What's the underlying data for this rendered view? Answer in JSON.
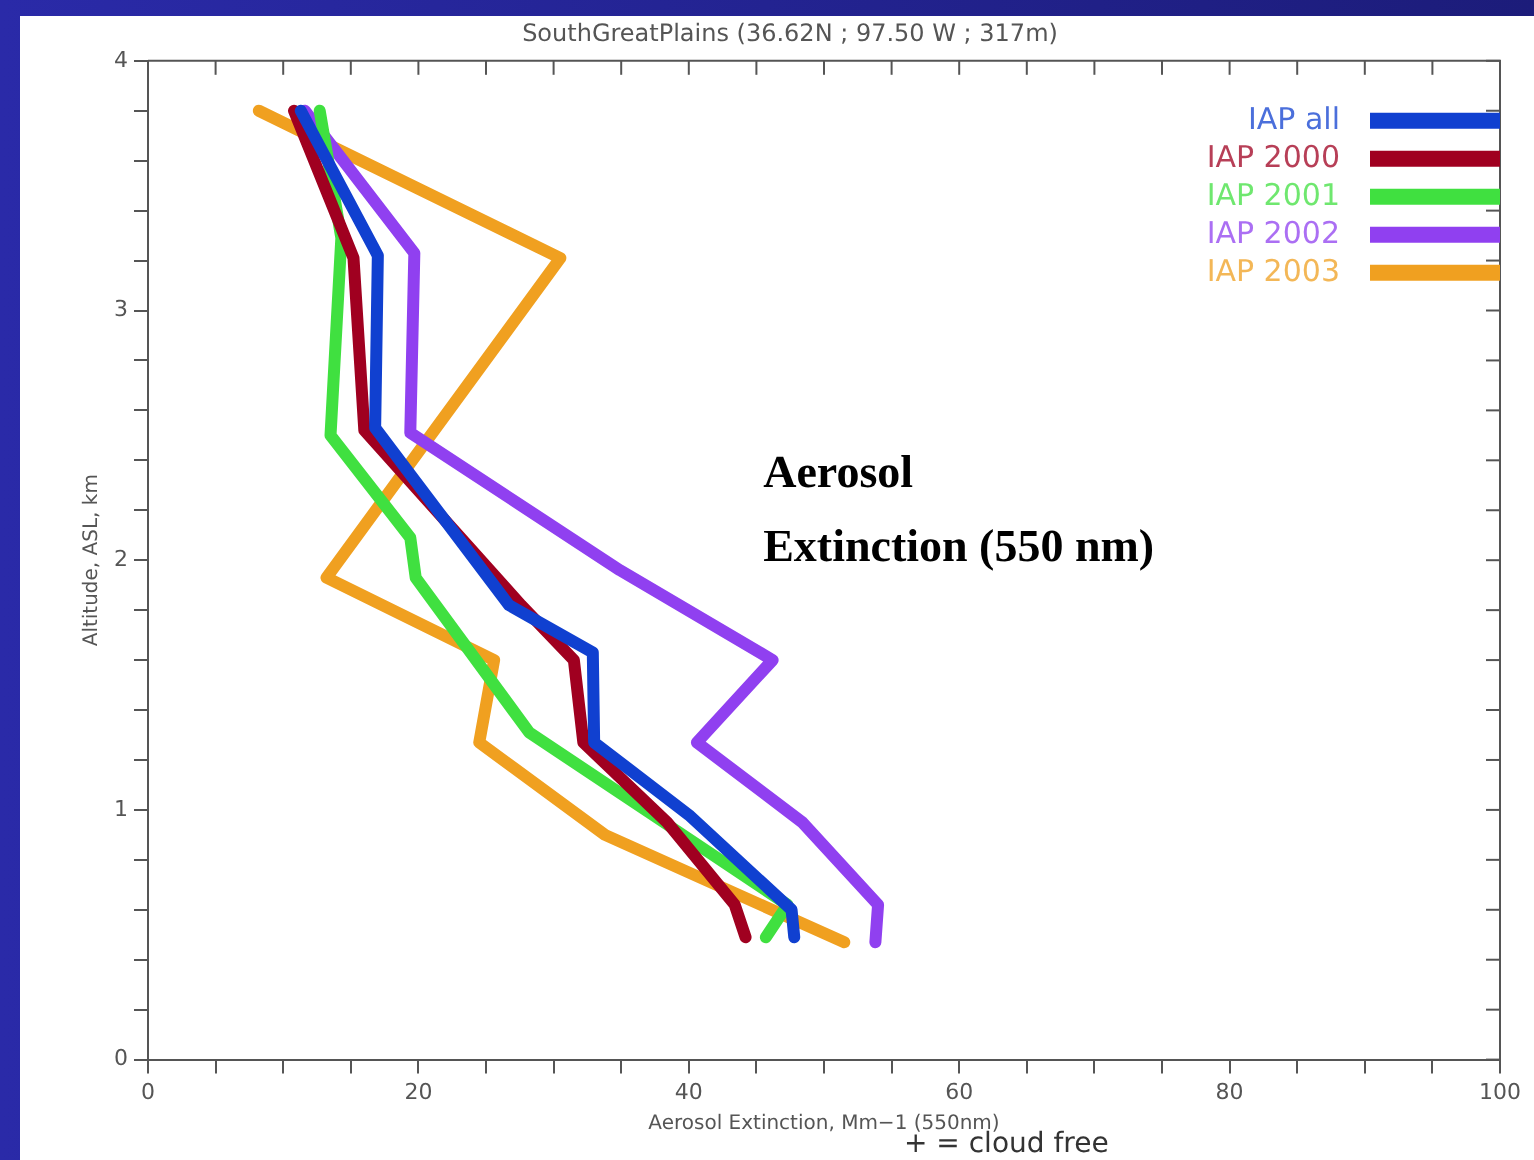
{
  "chart_data": {
    "type": "line",
    "title": "SouthGreatPlains (36.62N ; 97.50 W ; 317m)",
    "xlabel": "Aerosol Extinction, Mm−1 (550nm)",
    "ylabel": "Altitude, ASL, km",
    "annotations": [
      "Aerosol Extinction (550 nm)",
      "+ = cloud free"
    ],
    "xlim": [
      0,
      100
    ],
    "ylim": [
      0,
      4
    ],
    "xticks": [
      0,
      {
        "value": 5,
        "label": null
      },
      {
        "value": 10,
        "label": null
      },
      {
        "value": 15,
        "label": null
      },
      20,
      {
        "value": 25,
        "label": null
      },
      {
        "value": 30,
        "label": null
      },
      {
        "value": 35,
        "label": null
      },
      40,
      {
        "value": 45,
        "label": null
      },
      {
        "value": 50,
        "label": null
      },
      {
        "value": 55,
        "label": null
      },
      60,
      {
        "value": 65,
        "label": null
      },
      {
        "value": 70,
        "label": null
      },
      {
        "value": 75,
        "label": null
      },
      80,
      {
        "value": 85,
        "label": null
      },
      {
        "value": 90,
        "label": null
      },
      {
        "value": 95,
        "label": null
      },
      100
    ],
    "yticks": [
      0,
      {
        "value": 0.2,
        "label": null
      },
      {
        "value": 0.4,
        "label": null
      },
      {
        "value": 0.6,
        "label": null
      },
      {
        "value": 0.8,
        "label": null
      },
      1,
      {
        "value": 1.2,
        "label": null
      },
      {
        "value": 1.4,
        "label": null
      },
      {
        "value": 1.6,
        "label": null
      },
      {
        "value": 1.8,
        "label": null
      },
      2,
      {
        "value": 2.2,
        "label": null
      },
      {
        "value": 2.4,
        "label": null
      },
      {
        "value": 2.6,
        "label": null
      },
      {
        "value": 2.8,
        "label": null
      },
      3,
      {
        "value": 3.2,
        "label": null
      },
      {
        "value": 3.4,
        "label": null
      },
      {
        "value": 3.6,
        "label": null
      },
      {
        "value": 3.8,
        "label": null
      },
      4
    ],
    "grid": false,
    "legend": "top right",
    "marker": "none",
    "line_style": "solid",
    "series": [
      {
        "name": "IAP all",
        "color": "#1040d0",
        "x": [
          11.3,
          17,
          16.8,
          26.7,
          32.9,
          33,
          40,
          47.6,
          47.8
        ],
        "values": [
          3.8,
          3.22,
          2.53,
          1.82,
          1.63,
          1.27,
          0.98,
          0.6,
          0.49
        ]
      },
      {
        "name": "IAP 2000",
        "color": "#a00020",
        "x": [
          10.8,
          15.2,
          16,
          27.6,
          31.5,
          32.2,
          38.4,
          43.4,
          44.2
        ],
        "values": [
          3.8,
          3.21,
          2.52,
          1.82,
          1.6,
          1.27,
          0.95,
          0.62,
          0.49
        ]
      },
      {
        "name": "IAP 2001",
        "color": "#40e040",
        "x": [
          12.7,
          14.3,
          13.5,
          19.4,
          19.8,
          28.2,
          39,
          47.3,
          45.7
        ],
        "values": [
          3.8,
          3.29,
          2.5,
          2.09,
          1.93,
          1.31,
          0.92,
          0.62,
          0.49
        ]
      },
      {
        "name": "IAP 2002",
        "color": "#9040f0",
        "x": [
          11.6,
          19.7,
          19.4,
          34.9,
          46.2,
          40.6,
          48.4,
          54,
          53.8
        ],
        "values": [
          3.8,
          3.23,
          2.51,
          1.96,
          1.6,
          1.27,
          0.95,
          0.62,
          0.47
        ]
      },
      {
        "name": "IAP 2003",
        "color": "#f0a020",
        "x": [
          8.2,
          30.5,
          13.2,
          25.6,
          24.5,
          33.8,
          51.5
        ],
        "values": [
          3.8,
          3.21,
          1.93,
          1.6,
          1.27,
          0.9,
          0.47
        ]
      }
    ]
  }
}
